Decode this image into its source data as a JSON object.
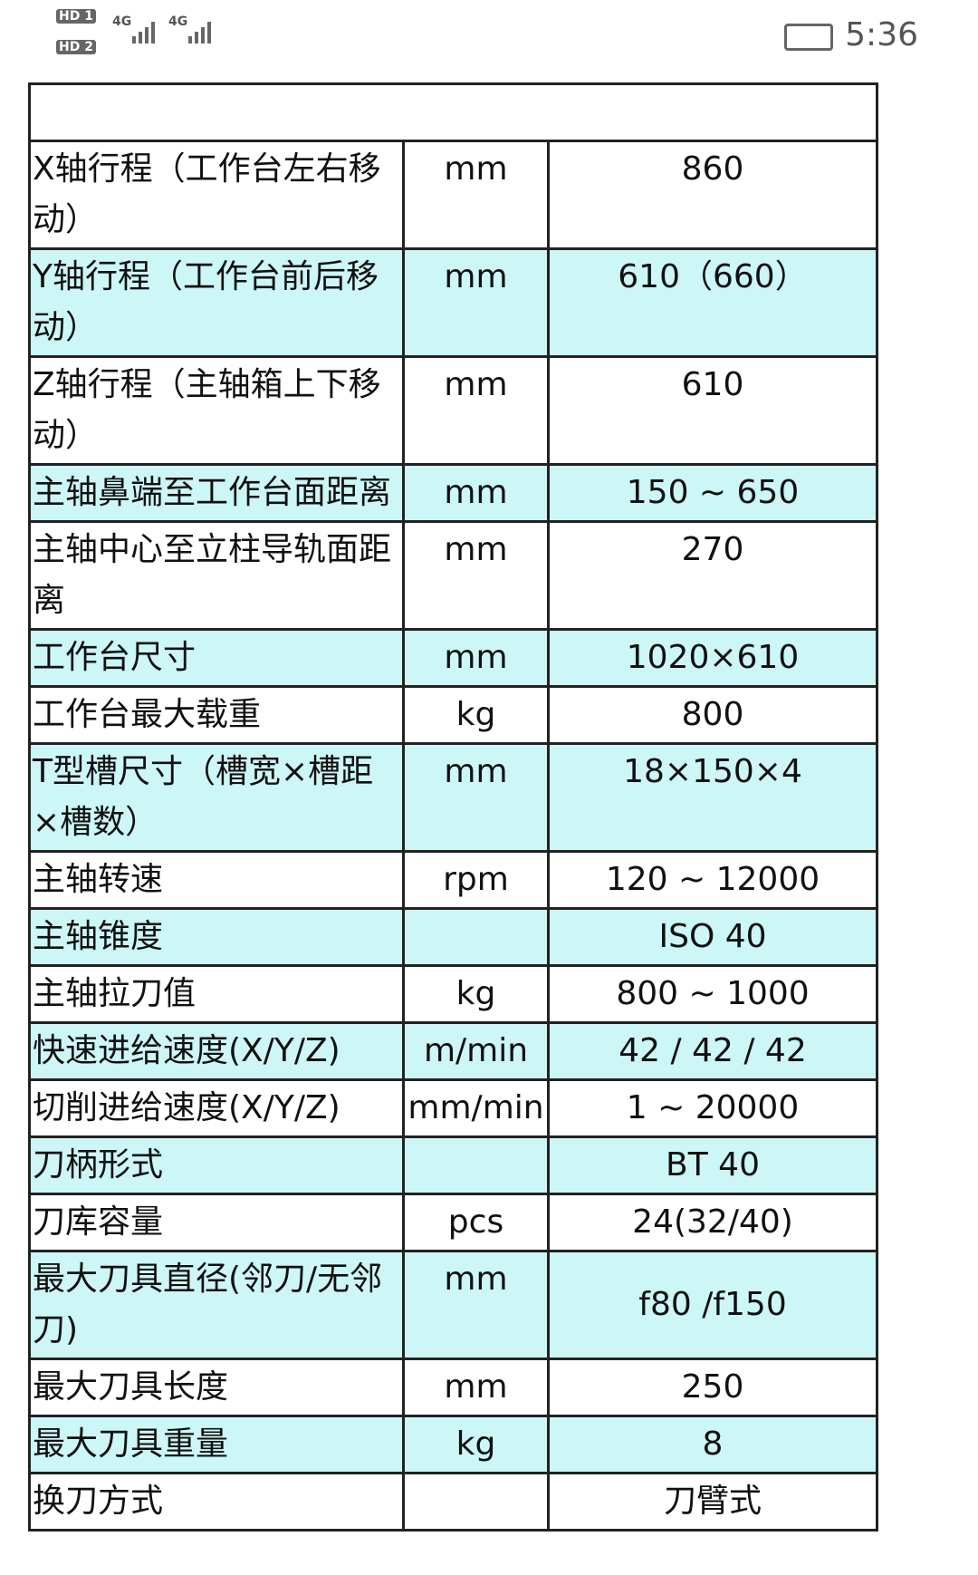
{
  "status_bar": {
    "sim1": "HD 1",
    "sim2": "HD 2",
    "net1": "4G",
    "net2": "4G",
    "time": "5:36"
  },
  "table": {
    "rows": [
      [
        "X轴行程（工作台左右移动）",
        "mm",
        "860"
      ],
      [
        "Y轴行程（工作台前后移动）",
        "mm",
        "610（660）"
      ],
      [
        "Z轴行程（主轴箱上下移动）",
        "mm",
        "610"
      ],
      [
        "主轴鼻端至工作台面距离",
        "mm",
        "150 ~ 650"
      ],
      [
        "主轴中心至立柱导轨面距离",
        "mm",
        "270"
      ],
      [
        "工作台尺寸",
        "mm",
        "1020×610"
      ],
      [
        "工作台最大载重",
        "kg",
        "800"
      ],
      [
        "T型槽尺寸（槽宽×槽距×槽数）",
        "mm",
        "18×150×4"
      ],
      [
        "主轴转速",
        "rpm",
        "120 ~ 12000"
      ],
      [
        "主轴锥度",
        "",
        "ISO 40"
      ],
      [
        "主轴拉刀值",
        "kg",
        "800 ~ 1000"
      ],
      [
        "快速进给速度(X/Y/Z)",
        "m/min",
        "42 / 42 / 42"
      ],
      [
        "切削进给速度(X/Y/Z)",
        "mm/min",
        "1 ~ 20000"
      ],
      [
        "刀柄形式",
        "",
        "BT 40"
      ],
      [
        "刀库容量",
        "pcs",
        "24(32/40)"
      ],
      [
        "最大刀具直径(邻刀/无邻刀)",
        "mm",
        "f80 /f150"
      ],
      [
        "最大刀具长度",
        "mm",
        "250"
      ],
      [
        "最大刀具重量",
        "kg",
        "8"
      ],
      [
        "换刀方式",
        "",
        "刀臂式"
      ]
    ]
  }
}
